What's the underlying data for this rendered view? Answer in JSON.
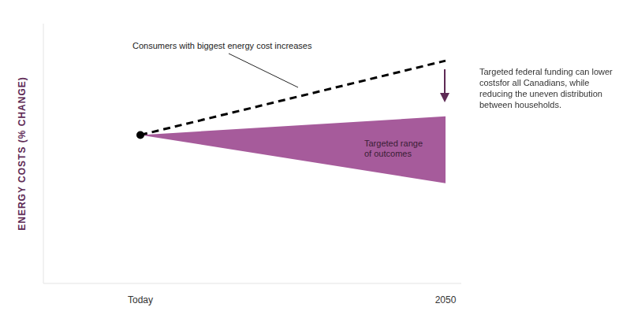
{
  "chart_data": {
    "type": "line",
    "y_label": "ENERGY COSTS (% CHANGE)",
    "categories": [
      "Today",
      "2050"
    ],
    "ylim": [
      -40,
      30
    ],
    "tick_labels": "x",
    "grid": false,
    "series": [
      {
        "name": "Consumers with biggest energy cost increases",
        "type": "line",
        "color": "#000000",
        "line_style": "dashed",
        "values": [
          0,
          20
        ]
      },
      {
        "name": "Targeted range of outcomes",
        "type": "range_area",
        "color": "#a65b9b",
        "low": [
          0,
          -13
        ],
        "high": [
          0,
          5
        ]
      }
    ],
    "annotations": [
      "Targeted federal funding can lower costsfor all Canadians, while reducing the uneven distribution between households."
    ]
  }
}
